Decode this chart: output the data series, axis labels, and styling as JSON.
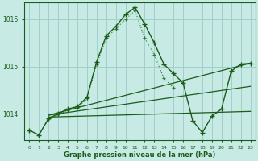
{
  "xlabel": "Graphe pression niveau de la mer (hPa)",
  "background_color": "#c8eae5",
  "grid_color": "#a0d0cc",
  "line_color_dark": "#1a5c1a",
  "line_color_mid": "#2a7a2a",
  "xlim": [
    -0.5,
    23.5
  ],
  "ylim": [
    1013.45,
    1016.35
  ],
  "yticks": [
    1014,
    1015,
    1016
  ],
  "xticks": [
    0,
    1,
    2,
    3,
    4,
    5,
    6,
    7,
    8,
    9,
    10,
    11,
    12,
    13,
    14,
    15,
    16,
    17,
    18,
    19,
    20,
    21,
    22,
    23
  ],
  "series_main": {
    "x": [
      0,
      1,
      2,
      3,
      4,
      5,
      6,
      7,
      8,
      9,
      10,
      11,
      12,
      13,
      14,
      15,
      16,
      17,
      18,
      19,
      20,
      21,
      22,
      23
    ],
    "y": [
      1013.65,
      1013.55,
      1013.9,
      1014.0,
      1014.1,
      1014.15,
      1014.35,
      1015.1,
      1015.65,
      1015.85,
      1016.1,
      1016.25,
      1015.9,
      1015.5,
      1015.05,
      1014.85,
      1014.65,
      1013.85,
      1013.6,
      1013.95,
      1014.1,
      1014.9,
      1015.05,
      1015.07
    ]
  },
  "series_dotted": {
    "x": [
      0,
      1,
      2,
      3,
      4,
      5,
      6,
      7,
      8,
      9,
      10,
      11,
      12,
      13,
      14,
      15
    ],
    "y": [
      1013.65,
      1013.55,
      1013.88,
      1013.98,
      1014.08,
      1014.12,
      1014.32,
      1015.05,
      1015.6,
      1015.8,
      1016.0,
      1016.18,
      1015.6,
      1015.25,
      1014.75,
      1014.55
    ]
  },
  "series_trend1": {
    "x": [
      2,
      23
    ],
    "y": [
      1013.93,
      1014.05
    ]
  },
  "series_trend2": {
    "x": [
      2,
      23
    ],
    "y": [
      1013.97,
      1014.58
    ]
  },
  "series_trend3": {
    "x": [
      2,
      23
    ],
    "y": [
      1013.97,
      1015.07
    ]
  }
}
